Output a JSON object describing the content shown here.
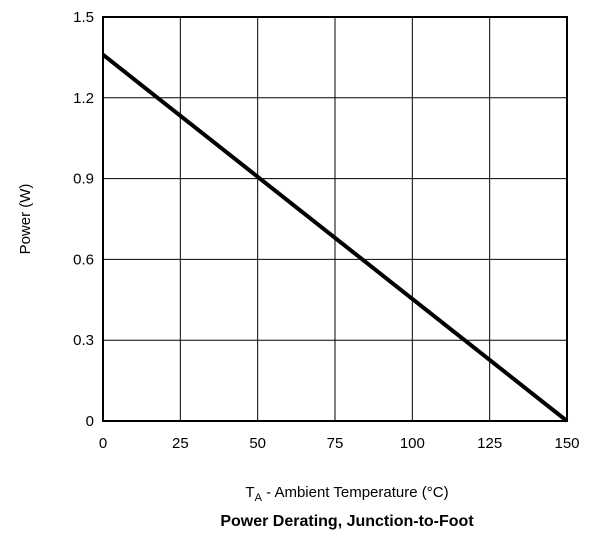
{
  "chart_data": {
    "type": "line",
    "title": "Power Derating, Junction-to-Foot",
    "xlabel_main": "T",
    "xlabel_sub": "A",
    "xlabel_rest": " - Ambient Temperature (°C)",
    "ylabel": "Power (W)",
    "xlim": [
      0,
      150
    ],
    "ylim": [
      0,
      1.5
    ],
    "x_ticks": [
      "0",
      "25",
      "50",
      "75",
      "100",
      "125",
      "150"
    ],
    "y_ticks": [
      "0",
      "0.3",
      "0.6",
      "0.9",
      "1.2",
      "1.5"
    ],
    "grid": true,
    "series": [
      {
        "x": [
          0,
          150
        ],
        "y": [
          1.36,
          0
        ],
        "color": "#000000"
      }
    ]
  }
}
